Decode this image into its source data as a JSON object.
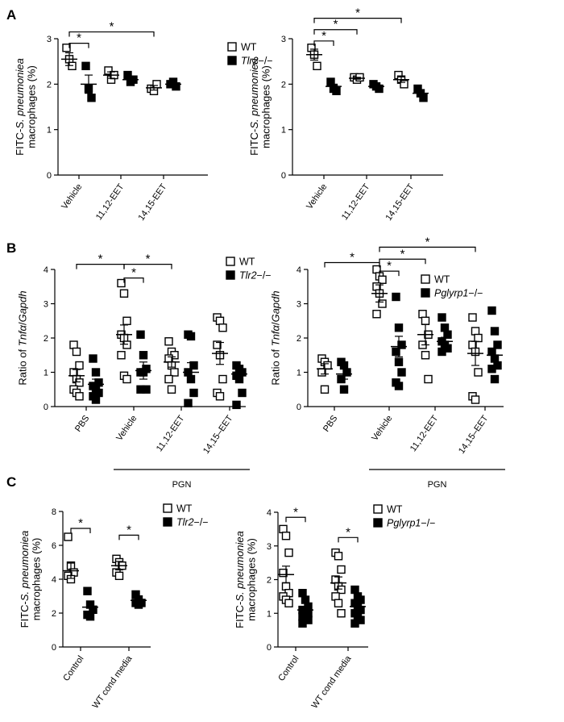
{
  "chart_data": [
    {
      "id": "A1",
      "panel": "A",
      "type": "scatter",
      "ylabel_lines": [
        "FITC-S. pneumoniea",
        "macrophages (%)"
      ],
      "ylim": [
        0,
        3
      ],
      "yticks": [
        "0",
        "1",
        "2",
        "3"
      ],
      "categories": [
        "Vehicle",
        "11,12-EET",
        "14,15-EET"
      ],
      "series": [
        {
          "name": "WT",
          "marker": "open-square",
          "points": [
            [
              2.8,
              2.55,
              2.4
            ],
            [
              2.3,
              2.1,
              2.2
            ],
            [
              1.9,
              1.85,
              2.0
            ]
          ],
          "mean": [
            2.55,
            2.2,
            1.92
          ],
          "sem": [
            0.14,
            0.07,
            0.05
          ]
        },
        {
          "name": "Tlr2−/−",
          "marker": "filled-square",
          "points": [
            [
              2.4,
              1.9,
              1.7
            ],
            [
              2.2,
              2.05,
              2.1
            ],
            [
              2.0,
              2.05,
              1.95
            ]
          ],
          "mean": [
            2.0,
            2.1,
            2.0
          ],
          "sem": [
            0.2,
            0.05,
            0.03
          ]
        }
      ],
      "significance": [
        {
          "label": "*",
          "from": [
            0,
            0
          ],
          "to": [
            0,
            1
          ],
          "y": 2.9
        },
        {
          "label": "*",
          "from": [
            0,
            0
          ],
          "to": [
            2,
            0
          ],
          "y": 3.15
        }
      ]
    },
    {
      "id": "A2",
      "panel": "A",
      "type": "scatter",
      "ylabel_lines": [
        "FITC-S. pneumoniea",
        "macrophages (%)"
      ],
      "ylim": [
        0,
        3
      ],
      "yticks": [
        "0",
        "1",
        "2",
        "3"
      ],
      "categories": [
        "Vehicle",
        "11,12-EET",
        "14,15-EET"
      ],
      "series": [
        {
          "name": "WT",
          "marker": "open-square",
          "points": [
            [
              2.8,
              2.65,
              2.4
            ],
            [
              2.15,
              2.1,
              2.15
            ],
            [
              2.2,
              2.1,
              2.0
            ]
          ],
          "mean": [
            2.65,
            2.13,
            2.1
          ],
          "sem": [
            0.12,
            0.02,
            0.06
          ]
        },
        {
          "name": "Tlr2−/−",
          "marker": "filled-square",
          "points": [
            [
              2.05,
              1.9,
              1.85
            ],
            [
              2.0,
              1.95,
              1.9
            ],
            [
              1.9,
              1.8,
              1.7
            ]
          ],
          "mean": [
            1.95,
            1.95,
            1.8
          ],
          "sem": [
            0.05,
            0.03,
            0.06
          ]
        }
      ],
      "significance": [
        {
          "label": "*",
          "from": [
            0,
            0
          ],
          "to": [
            0,
            1
          ],
          "y": 2.95
        },
        {
          "label": "*",
          "from": [
            0,
            0
          ],
          "to": [
            1,
            0
          ],
          "y": 3.2
        },
        {
          "label": "*",
          "from": [
            0,
            0
          ],
          "to": [
            2,
            0
          ],
          "y": 3.45
        }
      ]
    },
    {
      "id": "B1",
      "panel": "B",
      "type": "scatter",
      "ylabel_lines": [
        "Ratio of Tnfα/Gapdh"
      ],
      "ylim": [
        0,
        4
      ],
      "yticks": [
        "0",
        "1",
        "2",
        "3",
        "4"
      ],
      "categories": [
        "PBS",
        "Vehicle",
        "11,12-EET",
        "14,15–EET"
      ],
      "group_label": "PGN",
      "group_label_categories": [
        1,
        3
      ],
      "series": [
        {
          "name": "WT",
          "marker": "open-square",
          "points": [
            [
              1.8,
              1.6,
              1.2,
              1.0,
              0.8,
              0.7,
              0.5,
              0.4,
              0.3
            ],
            [
              3.6,
              3.3,
              2.5,
              2.1,
              2.0,
              1.8,
              1.5,
              0.9,
              0.8
            ],
            [
              1.9,
              1.6,
              1.5,
              1.4,
              1.2,
              1.0,
              0.8,
              0.5
            ],
            [
              2.6,
              2.5,
              2.3,
              1.8,
              1.5,
              0.8,
              0.4,
              0.3
            ]
          ],
          "mean": [
            0.9,
            2.1,
            1.3,
            1.55
          ],
          "sem": [
            0.18,
            0.28,
            0.15,
            0.32
          ]
        },
        {
          "name": "Tlr2−/−",
          "marker": "filled-square",
          "points": [
            [
              1.4,
              1.0,
              0.7,
              0.6,
              0.5,
              0.4,
              0.3,
              0.2
            ],
            [
              2.1,
              1.5,
              1.1,
              1.0,
              1.0,
              0.5,
              0.5
            ],
            [
              2.1,
              2.05,
              1.2,
              1.0,
              0.8,
              0.4,
              0.1
            ],
            [
              1.2,
              1.1,
              1.0,
              0.9,
              0.8,
              0.4,
              0.05
            ]
          ],
          "mean": [
            0.65,
            1.05,
            1.0,
            0.95
          ],
          "sem": [
            0.15,
            0.25,
            0.28,
            0.15
          ]
        }
      ],
      "significance": [
        {
          "label": "*",
          "from": [
            0,
            0
          ],
          "to": [
            1,
            0
          ],
          "y": 4.15
        },
        {
          "label": "*",
          "from": [
            1,
            0
          ],
          "to": [
            2,
            0
          ],
          "y": 4.15
        },
        {
          "label": "*",
          "from": [
            1,
            0
          ],
          "to": [
            1,
            1
          ],
          "y": 3.75
        }
      ]
    },
    {
      "id": "B2",
      "panel": "B",
      "type": "scatter",
      "ylabel_lines": [
        "Ratio of Tnfα/Gapdh"
      ],
      "ylim": [
        0,
        4
      ],
      "yticks": [
        "0",
        "1",
        "2",
        "3",
        "4"
      ],
      "categories": [
        "PBS",
        "Vehicle",
        "11,12-EET",
        "14,15–EET"
      ],
      "group_label": "PGN",
      "group_label_categories": [
        1,
        3
      ],
      "series": [
        {
          "name": "WT",
          "marker": "open-square",
          "points": [
            [
              1.4,
              1.3,
              1.2,
              1.0,
              0.5
            ],
            [
              4.0,
              3.8,
              3.7,
              3.5,
              3.3,
              3.0,
              2.7
            ],
            [
              2.7,
              2.5,
              2.1,
              1.8,
              1.5,
              0.8
            ],
            [
              2.6,
              2.2,
              2.0,
              1.8,
              1.6,
              1.0,
              0.3,
              0.2
            ]
          ],
          "mean": [
            1.1,
            3.3,
            2.1,
            1.55
          ],
          "sem": [
            0.15,
            0.25,
            0.3,
            0.35
          ]
        },
        {
          "name": "Pglyrp1−/−",
          "marker": "filled-square",
          "points": [
            [
              1.3,
              1.2,
              1.0,
              0.8,
              0.5
            ],
            [
              3.2,
              2.3,
              1.8,
              1.6,
              1.3,
              1.0,
              0.7,
              0.6
            ],
            [
              2.6,
              2.3,
              2.1,
              1.9,
              1.8,
              1.7,
              1.6
            ],
            [
              2.8,
              2.2,
              1.8,
              1.6,
              1.4,
              1.2,
              1.1,
              0.8
            ]
          ],
          "mean": [
            0.95,
            1.75,
            1.9,
            1.5
          ],
          "sem": [
            0.15,
            0.3,
            0.12,
            0.2
          ]
        }
      ],
      "significance": [
        {
          "label": "*",
          "from": [
            0,
            0
          ],
          "to": [
            1,
            0
          ],
          "y": 4.2
        },
        {
          "label": "*",
          "from": [
            1,
            0
          ],
          "to": [
            1,
            1
          ],
          "y": 3.95
        },
        {
          "label": "*",
          "from": [
            1,
            0
          ],
          "to": [
            2,
            0
          ],
          "y": 4.3
        },
        {
          "label": "*",
          "from": [
            1,
            0
          ],
          "to": [
            3,
            0
          ],
          "y": 4.65
        }
      ]
    },
    {
      "id": "C1",
      "panel": "C",
      "type": "scatter",
      "ylabel_lines": [
        "FITC-S. pneumoniea",
        "macrophages (%)"
      ],
      "ylim": [
        0,
        8
      ],
      "yticks": [
        "0",
        "2",
        "4",
        "6",
        "8"
      ],
      "categories": [
        "Control",
        "WT cond media"
      ],
      "series": [
        {
          "name": "WT",
          "marker": "open-square",
          "points": [
            [
              6.5,
              4.8,
              4.4,
              4.2,
              4.0
            ],
            [
              5.2,
              5.0,
              4.8,
              4.4,
              4.2
            ]
          ],
          "mean": [
            4.5,
            4.8
          ],
          "sem": [
            0.45,
            0.25
          ]
        },
        {
          "name": "Tlr2−/−",
          "marker": "filled-square",
          "points": [
            [
              3.3,
              2.5,
              2.2,
              1.9,
              1.8
            ],
            [
              3.1,
              2.8,
              2.6,
              2.6,
              2.5
            ]
          ],
          "mean": [
            2.35,
            2.75
          ],
          "sem": [
            0.3,
            0.15
          ]
        }
      ],
      "significance": [
        {
          "label": "*",
          "from": [
            0,
            0
          ],
          "to": [
            0,
            1
          ],
          "y": 7.0
        },
        {
          "label": "*",
          "from": [
            1,
            0
          ],
          "to": [
            1,
            1
          ],
          "y": 6.6
        }
      ]
    },
    {
      "id": "C2",
      "panel": "C",
      "type": "scatter",
      "ylabel_lines": [
        "FITC-S. pneumoniea",
        "macrophages (%)"
      ],
      "ylim": [
        0,
        4
      ],
      "yticks": [
        "0",
        "1",
        "2",
        "3",
        "4"
      ],
      "categories": [
        "Control",
        "WT cond media"
      ],
      "series": [
        {
          "name": "WT",
          "marker": "open-square",
          "points": [
            [
              3.5,
              3.3,
              2.8,
              2.2,
              1.8,
              1.6,
              1.5,
              1.4,
              1.3
            ],
            [
              2.8,
              2.7,
              2.3,
              2.0,
              1.8,
              1.7,
              1.5,
              1.3,
              1.0
            ]
          ],
          "mean": [
            2.15,
            1.9
          ],
          "sem": [
            0.25,
            0.18
          ]
        },
        {
          "name": "Pglyrp1−/−",
          "marker": "filled-square",
          "points": [
            [
              1.6,
              1.4,
              1.2,
              1.1,
              1.0,
              1.0,
              0.9,
              0.9,
              0.8,
              0.7
            ],
            [
              1.7,
              1.5,
              1.4,
              1.3,
              1.2,
              1.1,
              1.0,
              0.9,
              0.8,
              0.7
            ]
          ],
          "mean": [
            1.1,
            1.2
          ],
          "sem": [
            0.08,
            0.1
          ]
        }
      ],
      "significance": [
        {
          "label": "*",
          "from": [
            0,
            0
          ],
          "to": [
            0,
            1
          ],
          "y": 3.85
        },
        {
          "label": "*",
          "from": [
            1,
            0
          ],
          "to": [
            1,
            1
          ],
          "y": 3.25
        }
      ]
    }
  ]
}
